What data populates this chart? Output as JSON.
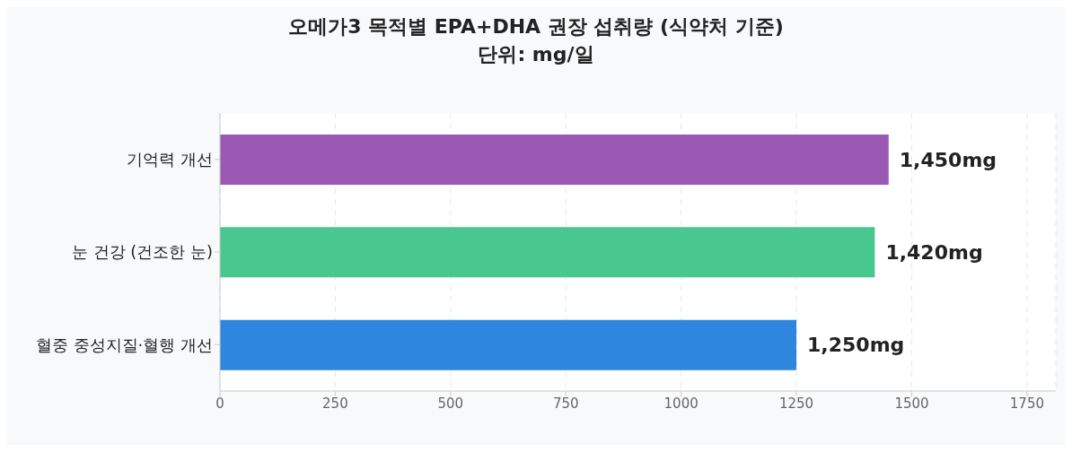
{
  "chart_data": {
    "type": "bar",
    "orientation": "horizontal",
    "title": "오메가3 목적별 EPA+DHA 권장 섭취량 (식약처 기준)",
    "subtitle": "단위: mg/일",
    "categories": [
      "기억력 개선",
      "눈 건강 (건조한 눈)",
      "혈중 중성지질·혈행 개선"
    ],
    "values": [
      1450,
      1420,
      1250
    ],
    "colors": [
      "#9b59b6",
      "#48c78e",
      "#2e86de"
    ],
    "value_labels": [
      "1,450mg",
      "1,420mg",
      "1,250mg"
    ],
    "xlim": [
      0,
      1812.5
    ],
    "xticks": [
      0,
      250,
      500,
      750,
      1000,
      1250,
      1500,
      1750
    ],
    "grid": "x"
  }
}
